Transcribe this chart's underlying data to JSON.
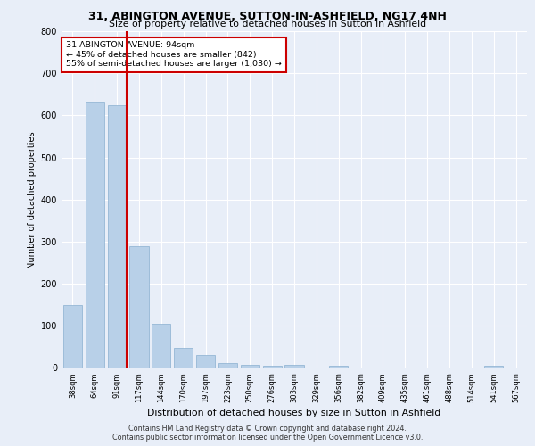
{
  "title_line1": "31, ABINGTON AVENUE, SUTTON-IN-ASHFIELD, NG17 4NH",
  "title_line2": "Size of property relative to detached houses in Sutton in Ashfield",
  "xlabel": "Distribution of detached houses by size in Sutton in Ashfield",
  "ylabel": "Number of detached properties",
  "categories": [
    "38sqm",
    "64sqm",
    "91sqm",
    "117sqm",
    "144sqm",
    "170sqm",
    "197sqm",
    "223sqm",
    "250sqm",
    "276sqm",
    "303sqm",
    "329sqm",
    "356sqm",
    "382sqm",
    "409sqm",
    "435sqm",
    "461sqm",
    "488sqm",
    "514sqm",
    "541sqm",
    "567sqm"
  ],
  "values": [
    150,
    632,
    625,
    290,
    104,
    47,
    31,
    11,
    8,
    6,
    8,
    0,
    5,
    0,
    0,
    0,
    0,
    0,
    0,
    5,
    0
  ],
  "bar_color": "#b8d0e8",
  "bar_edge_color": "#8ab0d0",
  "highlight_color": "#cc0000",
  "annotation_text": "31 ABINGTON AVENUE: 94sqm\n← 45% of detached houses are smaller (842)\n55% of semi-detached houses are larger (1,030) →",
  "annotation_box_color": "#ffffff",
  "annotation_box_edge": "#cc0000",
  "vline_x_index": 2,
  "ylim": [
    0,
    800
  ],
  "yticks": [
    0,
    100,
    200,
    300,
    400,
    500,
    600,
    700,
    800
  ],
  "background_color": "#e8eef8",
  "plot_bg_color": "#e8eef8",
  "grid_color": "#ffffff",
  "footer_line1": "Contains HM Land Registry data © Crown copyright and database right 2024.",
  "footer_line2": "Contains public sector information licensed under the Open Government Licence v3.0."
}
